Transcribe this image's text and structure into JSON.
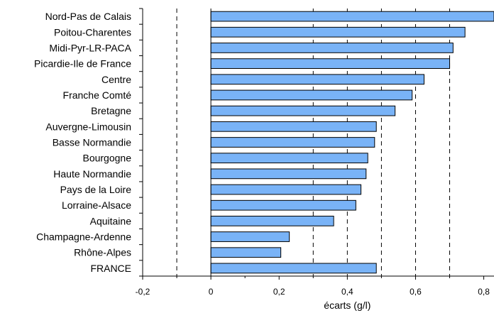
{
  "chart_data": {
    "type": "bar",
    "orientation": "horizontal",
    "categories": [
      "Nord-Pas de Calais",
      "Poitou-Charentes",
      "Midi-Pyr-LR-PACA",
      "Picardie-Ile de France",
      "Centre",
      "Franche Comté",
      "Bretagne",
      "Auvergne-Limousin",
      "Basse Normandie",
      "Bourgogne",
      "Haute Normandie",
      "Pays de la Loire",
      "Lorraine-Alsace",
      "Aquitaine",
      "Champagne-Ardenne",
      "Rhône-Alpes",
      "FRANCE"
    ],
    "values": [
      0.83,
      0.745,
      0.71,
      0.7,
      0.625,
      0.59,
      0.54,
      0.485,
      0.48,
      0.46,
      0.455,
      0.44,
      0.425,
      0.36,
      0.23,
      0.205,
      0.485
    ],
    "xlabel": "écarts (g/l)",
    "xlim": [
      -0.2,
      0.83
    ],
    "xticks": [
      -0.2,
      0,
      0.2,
      0.4,
      0.6,
      0.8
    ],
    "xtick_labels": [
      "-0,2",
      "0",
      "0,2",
      "0,4",
      "0,6",
      "0,8"
    ],
    "dashed_gridlines_x": [
      -0.1,
      0.3,
      0.4,
      0.5,
      0.6,
      0.7
    ],
    "solid_zero_line": true,
    "bar_color": "#79b3f7",
    "bar_edge_color": "#000000"
  }
}
